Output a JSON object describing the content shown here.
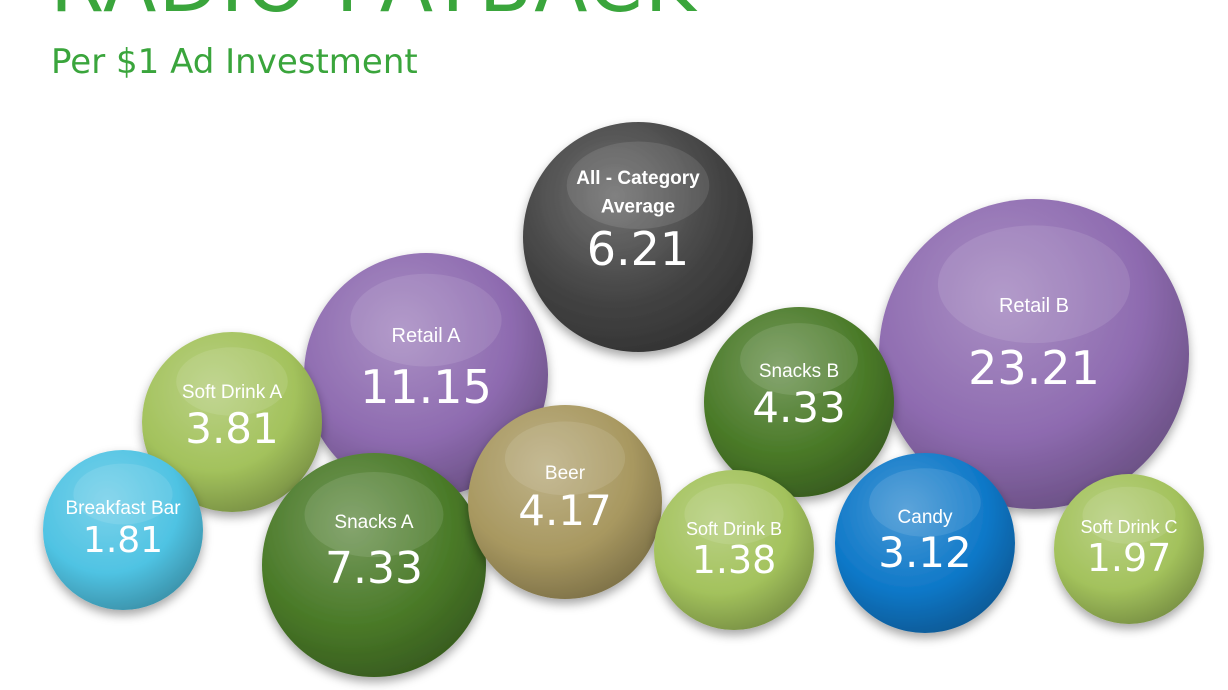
{
  "title": "RADIO PAYBACK",
  "subtitle": "Per $1 Ad Investment",
  "chart_data": {
    "type": "bubble",
    "title": "RADIO PAYBACK",
    "subtitle": "Per $1 Ad Investment",
    "bubbles": [
      {
        "label": "All - Category Average",
        "value": 6.21,
        "color": "#444444",
        "bold": true
      },
      {
        "label": "Retail A",
        "value": 11.15,
        "color": "#8e6bb0"
      },
      {
        "label": "Retail B",
        "value": 23.21,
        "color": "#8e6bb0"
      },
      {
        "label": "Snacks B",
        "value": 4.33,
        "color": "#4a7a28"
      },
      {
        "label": "Soft Drink A",
        "value": 3.81,
        "color": "#a3c25c"
      },
      {
        "label": "Breakfast Bar",
        "value": 1.81,
        "color": "#4fc3e3"
      },
      {
        "label": "Snacks A",
        "value": 7.33,
        "color": "#4a7a28"
      },
      {
        "label": "Beer",
        "value": 4.17,
        "color": "#a89860"
      },
      {
        "label": "Soft Drink B",
        "value": 1.38,
        "color": "#a3c25c"
      },
      {
        "label": "Candy",
        "value": 3.12,
        "color": "#0e78c8"
      },
      {
        "label": "Soft Drink C",
        "value": 1.97,
        "color": "#a3c25c"
      }
    ]
  }
}
